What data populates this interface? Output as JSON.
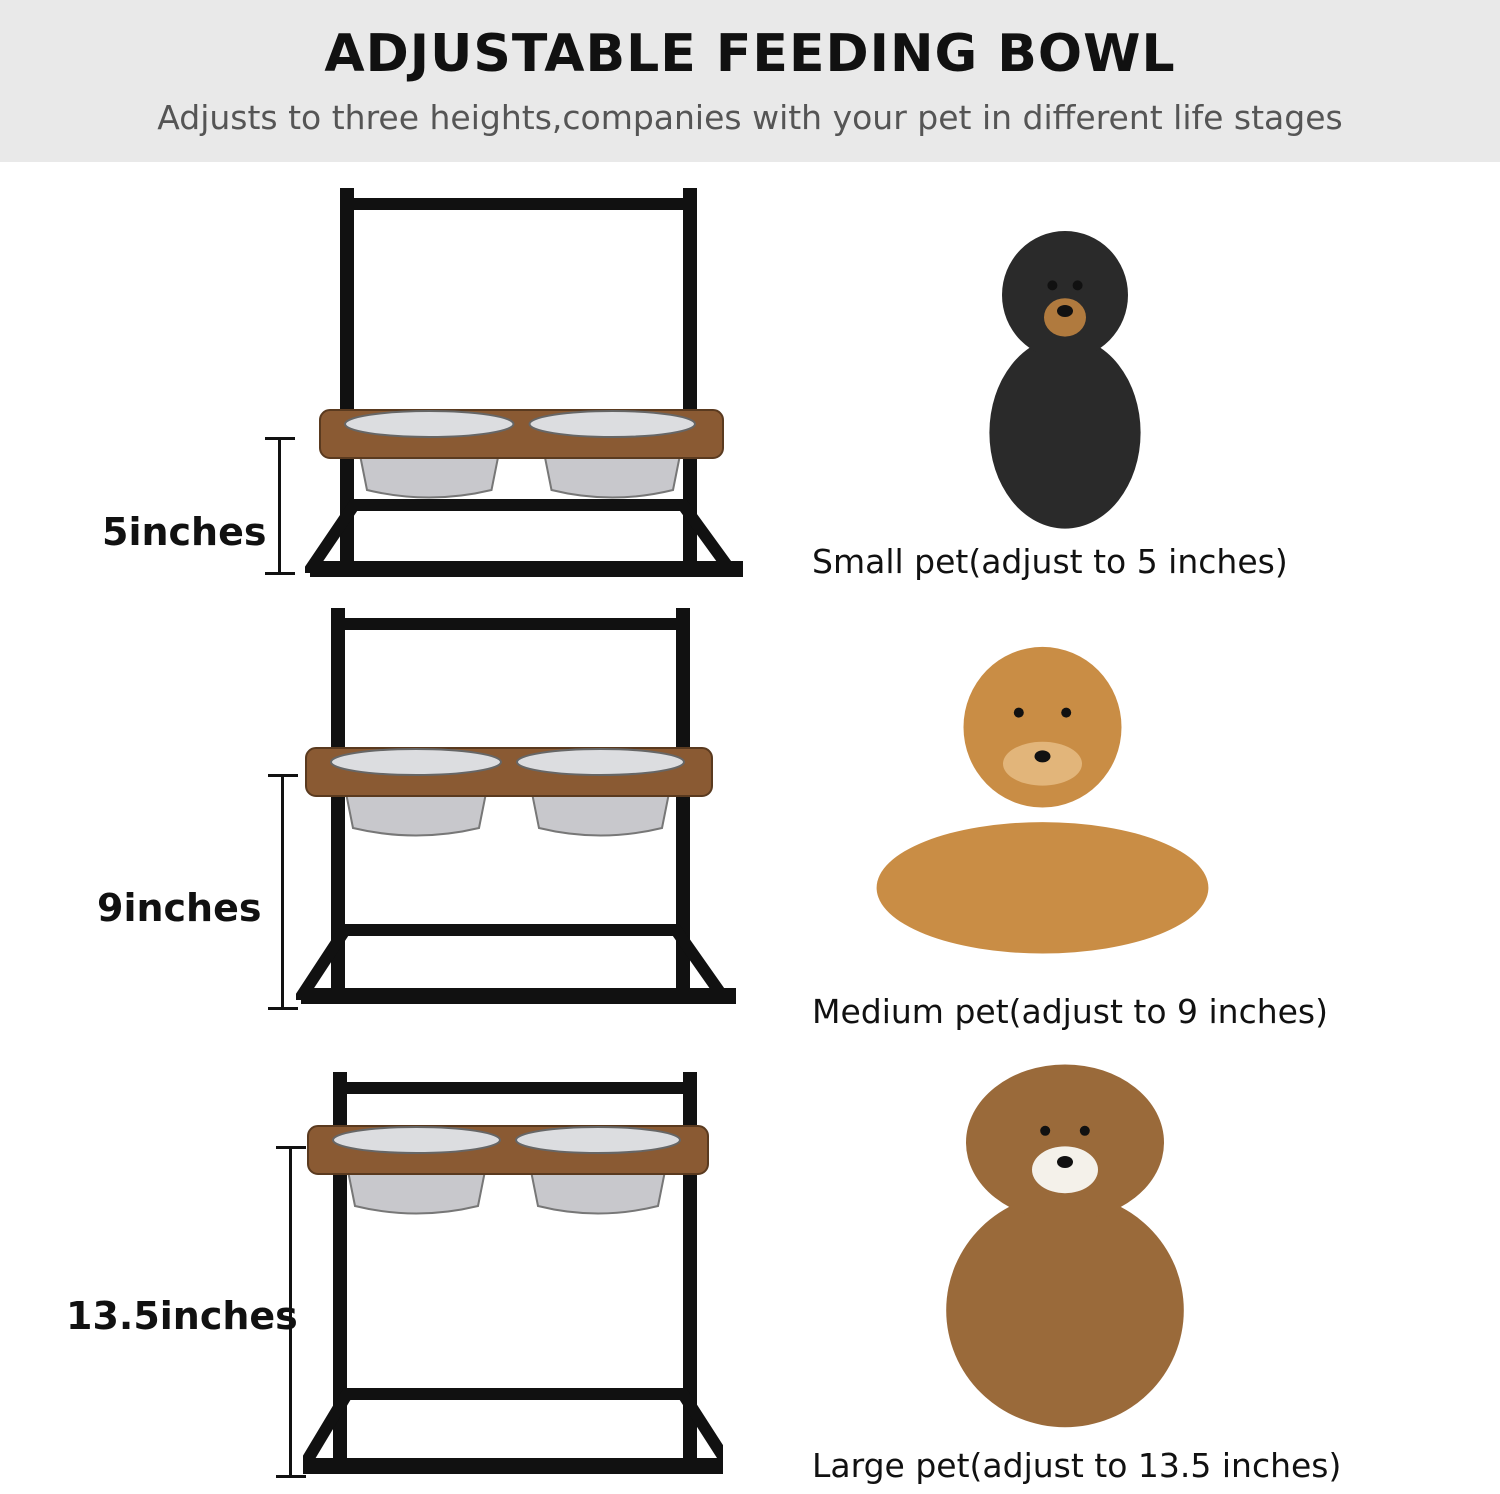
{
  "header": {
    "title": "ADJUSTABLE FEEDING BOWL",
    "subtitle": "Adjusts to three heights,companies  with your pet in different life stages"
  },
  "rows": [
    {
      "height_label": "5inches",
      "caption": "Small pet(adjust to 5 inches)",
      "dog": "dachshund-image"
    },
    {
      "height_label": "9inches",
      "caption": "Medium pet(adjust to 9 inches)",
      "dog": "golden-retriever-image"
    },
    {
      "height_label": "13.5inches",
      "caption": "Large pet(adjust to 13.5 inches)",
      "dog": "sheltie-image"
    }
  ],
  "colors": {
    "header_bg": "#e9e9e9",
    "frame": "#111111",
    "wood": "#8a5a33",
    "steel": "#c8c8cc"
  }
}
